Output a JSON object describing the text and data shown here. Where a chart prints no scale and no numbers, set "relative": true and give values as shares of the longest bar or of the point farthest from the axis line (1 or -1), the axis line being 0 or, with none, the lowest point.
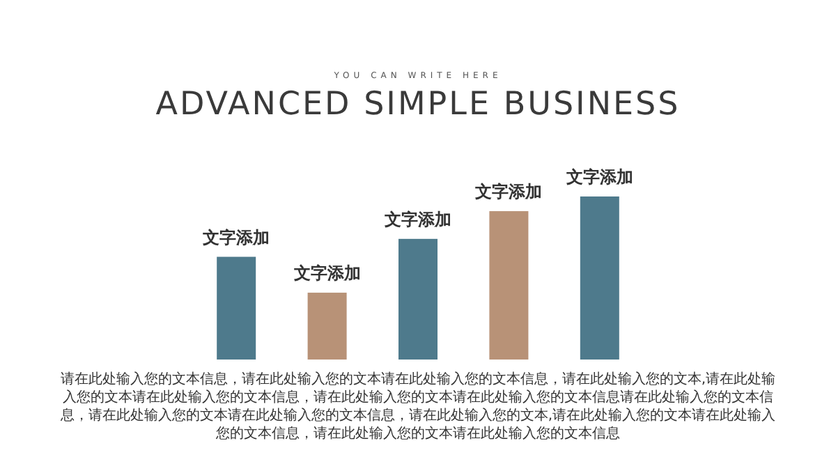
{
  "chart_data": {
    "type": "bar",
    "relative": true,
    "subtitle": "YOU CAN WRITE HERE",
    "title": "ADVANCED SIMPLE BUSINESS",
    "categories": [
      "文字添加",
      "文字添加",
      "文字添加",
      "文字添加",
      "文字添加"
    ],
    "values": [
      0.63,
      0.41,
      0.74,
      0.91,
      1
    ],
    "colors": [
      "#4e7a8c",
      "#b89277",
      "#4e7a8c",
      "#b89277",
      "#4e7a8c"
    ],
    "annotations": [
      "请在此处输入您的文本信息，请在此处输入您的文本请在此处输入您的文本信息，请在此处输入您的文本,请在此处输入您的文本请在此处输入您的文本信息，请在此处输入您的文本请在此处输入您的文本信息请在此处输入您的文本信息，请在此处输入您的文本请在此处输入您的文本信息，请在此处输入您的文本,请在此处输入您的文本请在此处输入您的文本信息，请在此处输入您的文本请在此处输入您的文本信息"
    ]
  }
}
